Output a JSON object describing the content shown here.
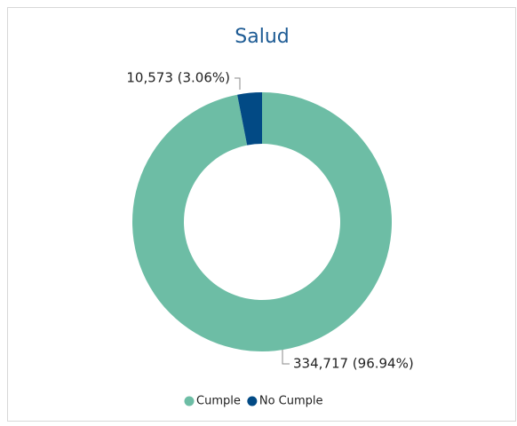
{
  "chart_data": {
    "type": "pie",
    "title": "Salud",
    "categories": [
      "Cumple",
      "No Cumple"
    ],
    "values": [
      334717,
      10573
    ],
    "value_labels": [
      "334,717 (96.94%)",
      "10,573 (3.06%)"
    ],
    "colors": [
      "#6dbda5",
      "#024a85"
    ]
  }
}
